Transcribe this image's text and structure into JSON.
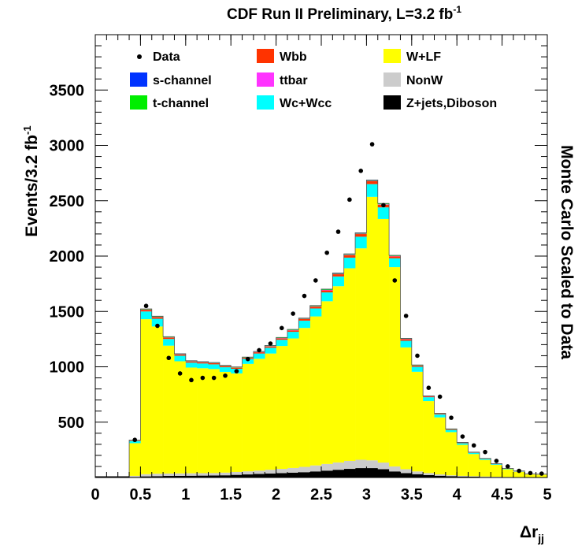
{
  "chart_data": {
    "type": "bar",
    "stacked": true,
    "title": "CDF Run II Preliminary, L=3.2 fb",
    "title_superscript": "-1",
    "ylabel": "Events/3.2 fb",
    "ylabel_superscript": "-1",
    "xlabel": "Δr",
    "xlabel_subscript": "jj",
    "right_label": "Monte Carlo Scaled to Data",
    "xlim": [
      0,
      5
    ],
    "ylim": [
      0,
      4000
    ],
    "x_ticks": [
      "0",
      "0.5",
      "1",
      "1.5",
      "2",
      "2.5",
      "3",
      "3.5",
      "4",
      "4.5",
      "5"
    ],
    "y_ticks": [
      "500",
      "1000",
      "1500",
      "2000",
      "2500",
      "3000",
      "3500"
    ],
    "bin_width": 0.125,
    "bin_low_edges": [
      0.375,
      0.5,
      0.625,
      0.75,
      0.875,
      1.0,
      1.125,
      1.25,
      1.375,
      1.5,
      1.625,
      1.75,
      1.875,
      2.0,
      2.125,
      2.25,
      2.375,
      2.5,
      2.625,
      2.75,
      2.875,
      3.0,
      3.125,
      3.25,
      3.375,
      3.5,
      3.625,
      3.75,
      3.875,
      4.0,
      4.125,
      4.25,
      4.375,
      4.5,
      4.625,
      4.75,
      4.875
    ],
    "legend_position": "top",
    "legend": [
      {
        "label": "Data",
        "kind": "marker"
      },
      {
        "label": "Wbb",
        "color": "#ff3300"
      },
      {
        "label": "W+LF",
        "color": "#ffff00"
      },
      {
        "label": "s-channel",
        "color": "#0033ff"
      },
      {
        "label": "ttbar",
        "color": "#ff33ff"
      },
      {
        "label": "NonW",
        "color": "#cccccc"
      },
      {
        "label": "t-channel",
        "color": "#00ee00"
      },
      {
        "label": "Wc+Wcc",
        "color": "#00ffff"
      },
      {
        "label": "Z+jets,Diboson",
        "color": "#000000"
      }
    ],
    "series": [
      {
        "name": "Z+jets,Diboson",
        "color": "#000000",
        "values": [
          5,
          10,
          12,
          14,
          15,
          16,
          17,
          18,
          20,
          24,
          28,
          32,
          36,
          40,
          44,
          48,
          55,
          62,
          70,
          78,
          85,
          85,
          75,
          55,
          40,
          30,
          22,
          16,
          12,
          9,
          7,
          5,
          4,
          3,
          2,
          2,
          1
        ]
      },
      {
        "name": "NonW",
        "color": "#cccccc",
        "values": [
          10,
          20,
          22,
          22,
          22,
          22,
          22,
          22,
          24,
          26,
          28,
          30,
          34,
          38,
          42,
          48,
          54,
          60,
          66,
          72,
          75,
          70,
          60,
          45,
          35,
          25,
          18,
          12,
          8,
          6,
          5,
          4,
          3,
          2,
          2,
          1,
          1
        ]
      },
      {
        "name": "W+LF",
        "color": "#ffff00",
        "values": [
          295,
          1400,
          1330,
          1155,
          1013,
          955,
          948,
          940,
          910,
          890,
          970,
          1010,
          1050,
          1110,
          1170,
          1255,
          1346,
          1470,
          1592,
          1740,
          1910,
          2380,
          2200,
          1800,
          1100,
          900,
          650,
          515,
          390,
          280,
          200,
          150,
          107,
          70,
          48,
          25,
          23
        ]
      },
      {
        "name": "Wc+Wcc",
        "color": "#00ffff",
        "values": [
          20,
          70,
          70,
          60,
          50,
          45,
          43,
          42,
          42,
          42,
          45,
          48,
          52,
          56,
          60,
          66,
          72,
          80,
          88,
          96,
          105,
          115,
          105,
          80,
          60,
          45,
          35,
          27,
          20,
          15,
          11,
          8,
          6,
          4,
          3,
          2,
          2
        ]
      },
      {
        "name": "Wbb",
        "color": "#ff3300",
        "values": [
          4,
          15,
          15,
          13,
          11,
          10,
          10,
          10,
          10,
          10,
          10,
          11,
          12,
          12,
          13,
          14,
          16,
          18,
          20,
          22,
          24,
          26,
          24,
          18,
          14,
          10,
          7,
          6,
          5,
          4,
          3,
          2,
          2,
          1,
          1,
          1,
          1
        ]
      },
      {
        "name": "ttbar",
        "color": "#ff33ff",
        "values": [
          1,
          2,
          2,
          2,
          2,
          2,
          2,
          2,
          2,
          2,
          2,
          3,
          3,
          3,
          3,
          3,
          3,
          4,
          4,
          4,
          4,
          4,
          4,
          3,
          3,
          2,
          2,
          2,
          1,
          1,
          1,
          1,
          1,
          1,
          1,
          1,
          1
        ]
      },
      {
        "name": "t-channel",
        "color": "#00ee00",
        "values": [
          2,
          4,
          4,
          4,
          3,
          3,
          3,
          3,
          3,
          3,
          3,
          3,
          4,
          4,
          4,
          4,
          5,
          5,
          5,
          5,
          5,
          5,
          5,
          4,
          3,
          3,
          2,
          2,
          2,
          1,
          1,
          1,
          1,
          1,
          1,
          1,
          1
        ]
      },
      {
        "name": "s-channel",
        "color": "#0033ff",
        "values": [
          1,
          2,
          2,
          2,
          2,
          2,
          2,
          2,
          2,
          2,
          2,
          2,
          2,
          2,
          2,
          2,
          2,
          3,
          3,
          3,
          3,
          3,
          3,
          2,
          2,
          2,
          1,
          1,
          1,
          1,
          1,
          1,
          1,
          1,
          1,
          1,
          1
        ]
      }
    ],
    "data_points": {
      "name": "Data",
      "x": [
        0.4375,
        0.5625,
        0.6875,
        0.8125,
        0.9375,
        1.0625,
        1.1875,
        1.3125,
        1.4375,
        1.5625,
        1.6875,
        1.8125,
        1.9375,
        2.0625,
        2.1875,
        2.3125,
        2.4375,
        2.5625,
        2.6875,
        2.8125,
        2.9375,
        3.0625,
        3.1875,
        3.3125,
        3.4375,
        3.5625,
        3.6875,
        3.8125,
        3.9375,
        4.0625,
        4.1875,
        4.3125,
        4.4375,
        4.5625,
        4.6875,
        4.8125,
        4.9375
      ],
      "y": [
        340,
        1550,
        1370,
        1080,
        940,
        880,
        900,
        900,
        920,
        960,
        1070,
        1150,
        1210,
        1350,
        1480,
        1640,
        1780,
        2030,
        2220,
        2510,
        2770,
        3010,
        2460,
        1780,
        1460,
        1100,
        810,
        730,
        540,
        370,
        290,
        230,
        150,
        100,
        60,
        40,
        35
      ]
    }
  }
}
